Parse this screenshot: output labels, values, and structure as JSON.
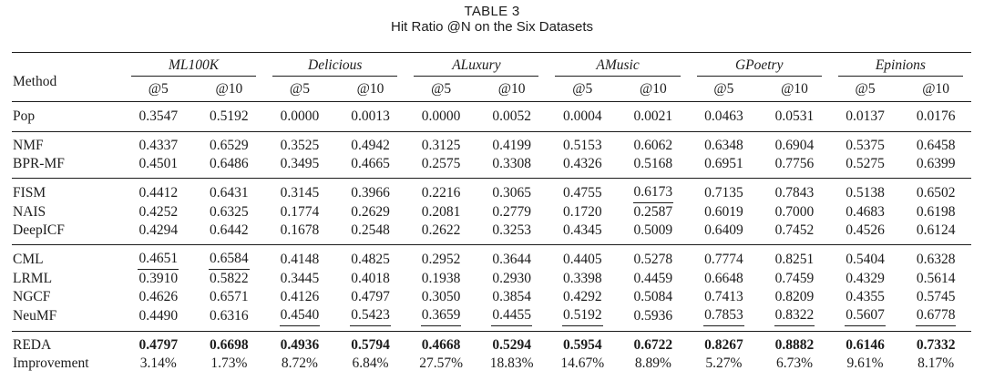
{
  "title": "TABLE 3",
  "subtitle": "Hit Ratio @N on the Six Datasets",
  "table": {
    "method_header": "Method",
    "datasets": [
      "ML100K",
      "Delicious",
      "ALuxury",
      "AMusic",
      "GPoetry",
      "Epinions"
    ],
    "metric_headers": [
      "@5",
      "@10"
    ],
    "groups": [
      {
        "name": "pop",
        "rows": [
          {
            "method": "Pop",
            "values": [
              "0.3547",
              "0.5192",
              "0.0000",
              "0.0013",
              "0.0000",
              "0.0052",
              "0.0004",
              "0.0021",
              "0.0463",
              "0.0531",
              "0.0137",
              "0.0176"
            ],
            "underline": [],
            "bold": false
          }
        ]
      },
      {
        "name": "mf",
        "rows": [
          {
            "method": "NMF",
            "values": [
              "0.4337",
              "0.6529",
              "0.3525",
              "0.4942",
              "0.3125",
              "0.4199",
              "0.5153",
              "0.6062",
              "0.6348",
              "0.6904",
              "0.5375",
              "0.6458"
            ],
            "underline": [],
            "bold": false
          },
          {
            "method": "BPR-MF",
            "values": [
              "0.4501",
              "0.6486",
              "0.3495",
              "0.4665",
              "0.2575",
              "0.3308",
              "0.4326",
              "0.5168",
              "0.6951",
              "0.7756",
              "0.5275",
              "0.6399"
            ],
            "underline": [],
            "bold": false
          }
        ]
      },
      {
        "name": "item-cf",
        "rows": [
          {
            "method": "FISM",
            "values": [
              "0.4412",
              "0.6431",
              "0.3145",
              "0.3966",
              "0.2216",
              "0.3065",
              "0.4755",
              "0.6173",
              "0.7135",
              "0.7843",
              "0.5138",
              "0.6502"
            ],
            "underline": [
              7
            ],
            "bold": false
          },
          {
            "method": "NAIS",
            "values": [
              "0.4252",
              "0.6325",
              "0.1774",
              "0.2629",
              "0.2081",
              "0.2779",
              "0.1720",
              "0.2587",
              "0.6019",
              "0.7000",
              "0.4683",
              "0.6198"
            ],
            "underline": [],
            "bold": false
          },
          {
            "method": "DeepICF",
            "values": [
              "0.4294",
              "0.6442",
              "0.1678",
              "0.2548",
              "0.2622",
              "0.3253",
              "0.4345",
              "0.5009",
              "0.6409",
              "0.7452",
              "0.4526",
              "0.6124"
            ],
            "underline": [],
            "bold": false
          }
        ]
      },
      {
        "name": "metric-learning",
        "rows": [
          {
            "method": "CML",
            "values": [
              "0.4651",
              "0.6584",
              "0.4148",
              "0.4825",
              "0.2952",
              "0.3644",
              "0.4405",
              "0.5278",
              "0.7774",
              "0.8251",
              "0.5404",
              "0.6328"
            ],
            "underline": [
              0,
              1
            ],
            "bold": false
          },
          {
            "method": "LRML",
            "values": [
              "0.3910",
              "0.5822",
              "0.3445",
              "0.4018",
              "0.1938",
              "0.2930",
              "0.3398",
              "0.4459",
              "0.6648",
              "0.7459",
              "0.4329",
              "0.5614"
            ],
            "underline": [],
            "bold": false
          },
          {
            "method": "NGCF",
            "values": [
              "0.4626",
              "0.6571",
              "0.4126",
              "0.4797",
              "0.3050",
              "0.3854",
              "0.4292",
              "0.5084",
              "0.7413",
              "0.8209",
              "0.4355",
              "0.5745"
            ],
            "underline": [],
            "bold": false
          },
          {
            "method": "NeuMF",
            "values": [
              "0.4490",
              "0.6316",
              "0.4540",
              "0.5423",
              "0.3659",
              "0.4455",
              "0.5192",
              "0.5936",
              "0.7853",
              "0.8322",
              "0.5607",
              "0.6778"
            ],
            "underline": [
              2,
              3,
              4,
              5,
              6,
              8,
              9,
              10,
              11
            ],
            "bold": false
          }
        ]
      },
      {
        "name": "reda",
        "rows": [
          {
            "method": "REDA",
            "values": [
              "0.4797",
              "0.6698",
              "0.4936",
              "0.5794",
              "0.4668",
              "0.5294",
              "0.5954",
              "0.6722",
              "0.8267",
              "0.8882",
              "0.6146",
              "0.7332"
            ],
            "underline": [],
            "bold": true
          },
          {
            "method": "Improvement",
            "values": [
              "3.14%",
              "1.73%",
              "8.72%",
              "6.84%",
              "27.57%",
              "18.83%",
              "14.67%",
              "8.89%",
              "5.27%",
              "6.73%",
              "9.61%",
              "8.17%"
            ],
            "underline": [],
            "bold": false
          }
        ]
      }
    ]
  }
}
